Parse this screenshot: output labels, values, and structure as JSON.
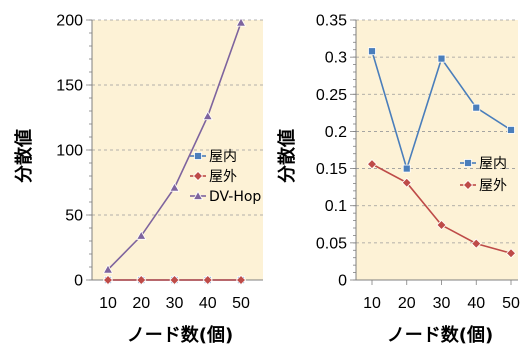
{
  "chart_data": [
    {
      "type": "line",
      "x": [
        10,
        20,
        30,
        40,
        50
      ],
      "xlabel": "ノード数(個)",
      "ylabel": "分散値",
      "ylim": [
        0,
        200
      ],
      "yticks": [
        0,
        50,
        100,
        150,
        200
      ],
      "grid": "horizontal dashed",
      "legend_position": "right",
      "plot_bg": "#fdf2d6",
      "series": [
        {
          "name": "屋内",
          "values": [
            0,
            0,
            0,
            0,
            0
          ],
          "color": "#4a7ebb",
          "marker": "square"
        },
        {
          "name": "屋外",
          "values": [
            0,
            0,
            0,
            0,
            0
          ],
          "color": "#be4b48",
          "marker": "diamond"
        },
        {
          "name": "DV-Hop",
          "values": [
            8,
            34,
            71,
            126,
            198
          ],
          "color": "#7e649e",
          "marker": "triangle"
        }
      ]
    },
    {
      "type": "line",
      "x": [
        10,
        20,
        30,
        40,
        50
      ],
      "xlabel": "ノード数(個)",
      "ylabel": "分散値",
      "ylim": [
        0,
        0.35
      ],
      "yticks": [
        0,
        0.05,
        0.1,
        0.15,
        0.2,
        0.25,
        0.3,
        0.35
      ],
      "grid": "horizontal dashed",
      "legend_position": "right",
      "plot_bg": "#fdf2d6",
      "series": [
        {
          "name": "屋内",
          "values": [
            0.308,
            0.15,
            0.298,
            0.232,
            0.202
          ],
          "color": "#4a7ebb",
          "marker": "square"
        },
        {
          "name": "屋外",
          "values": [
            0.156,
            0.131,
            0.074,
            0.049,
            0.036
          ],
          "color": "#be4b48",
          "marker": "diamond"
        }
      ]
    }
  ]
}
